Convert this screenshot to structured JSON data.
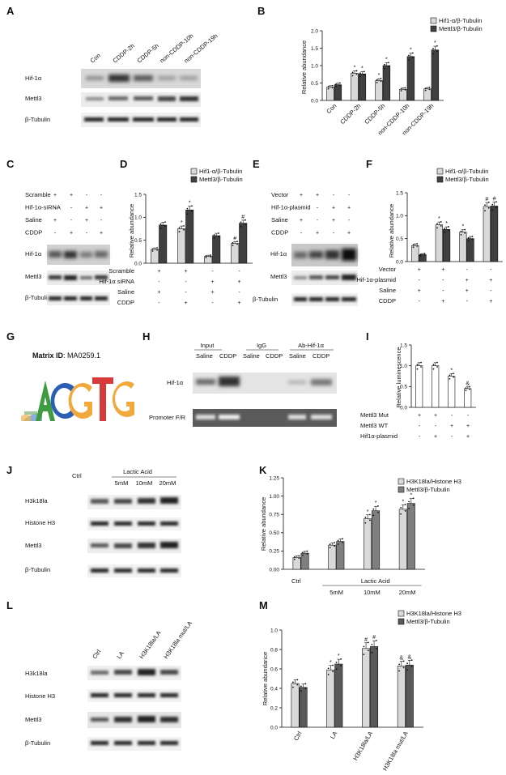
{
  "panels": {
    "A": {
      "label": "A",
      "lanes": [
        "Con",
        "CDDP-2h",
        "CDDP-5h",
        "non-CDDP-10h",
        "non-CDDP-19h"
      ],
      "rows": [
        "Hif-1α",
        "Mettl3",
        "β-Tubulin"
      ]
    },
    "C": {
      "label": "C",
      "treat_rows": [
        {
          "name": "Scramble",
          "signs": [
            "+",
            "+",
            "-",
            "-"
          ]
        },
        {
          "name": "Hif-1α-siRNA",
          "signs": [
            "-",
            "-",
            "+",
            "+"
          ]
        },
        {
          "name": "Saline",
          "signs": [
            "+",
            "-",
            "+",
            "-"
          ]
        },
        {
          "name": "CDDP",
          "signs": [
            "-",
            "+",
            "-",
            "+"
          ]
        }
      ],
      "rows": [
        "Hif-1α",
        "Mettl3",
        "β-Tubulin"
      ]
    },
    "E": {
      "label": "E",
      "treat_rows": [
        {
          "name": "Vector",
          "signs": [
            "+",
            "+",
            "-",
            "-"
          ]
        },
        {
          "name": "Hif-1α-plasmid",
          "signs": [
            "-",
            "-",
            "+",
            "+"
          ]
        },
        {
          "name": "Saline",
          "signs": [
            "+",
            "-",
            "+",
            "-"
          ]
        },
        {
          "name": "CDDP",
          "signs": [
            "-",
            "+",
            "-",
            "+"
          ]
        }
      ],
      "rows": [
        "Hif-1α",
        "Mettl3",
        "β-Tubulin"
      ]
    },
    "G": {
      "label": "G",
      "matrix_label": "Matrix ID",
      "matrix_id": ": MA0259.1",
      "motif": "ACGTG"
    },
    "H": {
      "label": "H",
      "groups": [
        "Input",
        "IgG",
        "Ab-Hif-1α"
      ],
      "lanes": [
        "Saline",
        "CDDP",
        "Saline",
        "CDDP",
        "Saline",
        "CDDP"
      ],
      "rows": [
        "Hif-1α",
        "Promoter F/R"
      ]
    },
    "J": {
      "label": "J",
      "ctrl": "Ctrl",
      "group": "Lactic Acid",
      "lanes": [
        "5mM",
        "10mM",
        "20mM"
      ],
      "rows": [
        "H3k18la",
        "Histone H3",
        "Mettl3",
        "β-Tubulin"
      ]
    },
    "L": {
      "label": "L",
      "lanes": [
        "Ctrl",
        "LA",
        "H3K18la/LA",
        "H3K18la mut/LA"
      ],
      "rows": [
        "H3k18la",
        "Histone H3",
        "Mettl3",
        "β-Tubulin"
      ]
    }
  },
  "chart_data": [
    {
      "id": "B",
      "type": "bar",
      "title": "",
      "ylabel": "Relative abundance",
      "ylim": [
        0,
        2.0
      ],
      "yticks": [
        "0.0",
        "0.5",
        "1.0",
        "1.5",
        "2.0"
      ],
      "categories": [
        "Con",
        "CDDP-2h",
        "CDDP-5h",
        "non-CDDP-10h",
        "non-CDDP-19h"
      ],
      "series": [
        {
          "name": "Hif1-α/β-Tubulin",
          "color": "#d9d9d9",
          "values": [
            0.38,
            0.78,
            0.57,
            0.32,
            0.33
          ]
        },
        {
          "name": "Mettl3/β-Tubulin",
          "color": "#404040",
          "values": [
            0.45,
            0.76,
            1.0,
            1.26,
            1.45
          ]
        }
      ],
      "marks": [
        [
          "",
          "",
          ""
        ],
        [
          "*",
          "*",
          ""
        ],
        [
          "*",
          "*",
          ""
        ],
        [
          "",
          "*",
          ""
        ],
        [
          "",
          "*",
          ""
        ]
      ]
    },
    {
      "id": "D",
      "type": "bar",
      "title": "",
      "ylabel": "Relative abundance",
      "ylim": [
        0,
        1.5
      ],
      "yticks": [
        "0.0",
        "0.5",
        "1.0",
        "1.5"
      ],
      "categories": [
        "1",
        "2",
        "3",
        "4"
      ],
      "series": [
        {
          "name": "Hif1-α/β-Tubulin",
          "color": "#d9d9d9",
          "values": [
            0.3,
            0.75,
            0.15,
            0.43
          ]
        },
        {
          "name": "Mettl3/β-Tubulin",
          "color": "#404040",
          "values": [
            0.83,
            1.16,
            0.6,
            0.87
          ]
        }
      ],
      "marks": [
        [
          "",
          ""
        ],
        [
          "*",
          "*"
        ],
        [
          "",
          ""
        ],
        [
          "#",
          "#"
        ]
      ],
      "rows": [
        {
          "name": "Scramble",
          "signs": [
            "+",
            "+",
            "-",
            "-"
          ]
        },
        {
          "name": "Hif-1α siRNA",
          "signs": [
            "-",
            "-",
            "+",
            "+"
          ]
        },
        {
          "name": "Saline",
          "signs": [
            "+",
            "-",
            "+",
            "-"
          ]
        },
        {
          "name": "CDDP",
          "signs": [
            "-",
            "+",
            "-",
            "+"
          ]
        }
      ]
    },
    {
      "id": "F",
      "type": "bar",
      "title": "",
      "ylabel": "Relative abundance",
      "ylim": [
        0,
        1.5
      ],
      "yticks": [
        "0.0",
        "0.5",
        "1.0",
        "1.5"
      ],
      "categories": [
        "1",
        "2",
        "3",
        "4"
      ],
      "series": [
        {
          "name": "Hif1-α/β-Tubulin",
          "color": "#d9d9d9",
          "values": [
            0.35,
            0.8,
            0.64,
            1.2
          ]
        },
        {
          "name": "Mettl3/β-Tubulin",
          "color": "#404040",
          "values": [
            0.15,
            0.7,
            0.5,
            1.21
          ]
        }
      ],
      "marks": [
        [
          "",
          ""
        ],
        [
          "*",
          "*"
        ],
        [
          "*",
          ""
        ],
        [
          "#",
          "#"
        ]
      ],
      "rows": [
        {
          "name": "Vector",
          "signs": [
            "+",
            "+",
            "-",
            "-"
          ]
        },
        {
          "name": "Hif-1α-plasmid",
          "signs": [
            "-",
            "-",
            "+",
            "+"
          ]
        },
        {
          "name": "Saline",
          "signs": [
            "+",
            "-",
            "+",
            "-"
          ]
        },
        {
          "name": "CDDP",
          "signs": [
            "-",
            "+",
            "-",
            "+"
          ]
        }
      ]
    },
    {
      "id": "I",
      "type": "bar",
      "title": "",
      "ylabel": "Relative luminescence",
      "ylim": [
        0,
        1.5
      ],
      "yticks": [
        "0.0",
        "0.5",
        "1.0",
        "1.5"
      ],
      "categories": [
        "1",
        "2",
        "3",
        "4"
      ],
      "series": [
        {
          "name": "",
          "color": "#ffffff",
          "values": [
            1.0,
            1.0,
            0.75,
            0.45
          ]
        }
      ],
      "marks": [
        [
          ""
        ],
        [
          ""
        ],
        [
          "*"
        ],
        [
          "&"
        ]
      ],
      "rows": [
        {
          "name": "Mettl3 Mut",
          "signs": [
            "+",
            "+",
            "-",
            "-"
          ]
        },
        {
          "name": "Mettl3 WT",
          "signs": [
            "-",
            "-",
            "+",
            "+"
          ]
        },
        {
          "name": "Hif1α-plasmid",
          "signs": [
            "-",
            "+",
            "-",
            "+"
          ]
        }
      ]
    },
    {
      "id": "K",
      "type": "bar",
      "title": "",
      "ylabel": "Relative abundance",
      "ylim": [
        0,
        1.25
      ],
      "yticks": [
        "0.00",
        "0.25",
        "0.50",
        "0.75",
        "1.00",
        "1.25"
      ],
      "categories": [
        "Ctrl",
        "5mM",
        "10mM",
        "20mM"
      ],
      "group_label": "Lactic Acid",
      "series": [
        {
          "name": "H3K18la/Histone H3",
          "color": "#d9d9d9",
          "values": [
            0.16,
            0.33,
            0.69,
            0.82
          ]
        },
        {
          "name": "Mettl3/β-Tubulin",
          "color": "#7f7f7f",
          "values": [
            0.22,
            0.38,
            0.8,
            0.9
          ]
        }
      ],
      "marks": [
        [
          "",
          ""
        ],
        [
          "",
          ""
        ],
        [
          "*",
          "*"
        ],
        [
          "*",
          "*"
        ]
      ]
    },
    {
      "id": "M",
      "type": "bar",
      "title": "",
      "ylabel": "Relative abundance",
      "ylim": [
        0,
        1.0
      ],
      "yticks": [
        "0.0",
        "0.2",
        "0.4",
        "0.6",
        "0.8",
        "1.0"
      ],
      "categories": [
        "Ctrl",
        "LA",
        "H3K18la/LA",
        "H3K18la mut/LA"
      ],
      "series": [
        {
          "name": "H3K18la/Histone H3",
          "color": "#d9d9d9",
          "values": [
            0.45,
            0.59,
            0.81,
            0.63
          ]
        },
        {
          "name": "Mettl3/β-Tubulin",
          "color": "#595959",
          "values": [
            0.41,
            0.65,
            0.83,
            0.64
          ]
        }
      ],
      "marks": [
        [
          "",
          ""
        ],
        [
          "*",
          "*"
        ],
        [
          "#",
          "#"
        ],
        [
          "&",
          "&"
        ]
      ]
    }
  ]
}
